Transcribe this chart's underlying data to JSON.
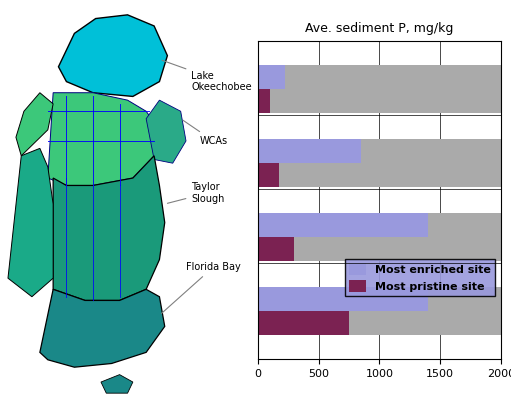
{
  "title": "Ave. sediment P, mg/kg",
  "categories": [
    "Lake\nOkeechobee",
    "WCAs",
    "Taylor\nSlough",
    "Florida Bay"
  ],
  "enriched_values": [
    1400,
    1400,
    850,
    220
  ],
  "pristine_values": [
    750,
    300,
    175,
    100
  ],
  "enriched_color": "#9999dd",
  "pristine_color": "#7b2252",
  "bar_bg_color": "#aaaaaa",
  "xlim": [
    0,
    2000
  ],
  "xticks": [
    0,
    500,
    1000,
    1500,
    2000
  ],
  "legend_enriched": "Most enriched site",
  "legend_pristine": "Most pristine site",
  "bar_height": 0.32,
  "n_cats": 4
}
